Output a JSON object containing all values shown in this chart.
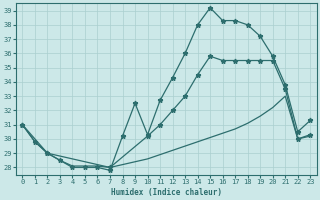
{
  "xlabel": "Humidex (Indice chaleur)",
  "xlim": [
    -0.5,
    23.5
  ],
  "ylim": [
    27.5,
    39.5
  ],
  "yticks": [
    28,
    29,
    30,
    31,
    32,
    33,
    34,
    35,
    36,
    37,
    38,
    39
  ],
  "xticks": [
    0,
    1,
    2,
    3,
    4,
    5,
    6,
    7,
    8,
    9,
    10,
    11,
    12,
    13,
    14,
    15,
    16,
    17,
    18,
    19,
    20,
    21,
    22,
    23
  ],
  "bg_color": "#cce8e8",
  "line_color": "#2d6e6e",
  "grid_color": "#aacfcf",
  "curve1_x": [
    0,
    1,
    2,
    3,
    4,
    5,
    6,
    7,
    8,
    9,
    10,
    11,
    12,
    13,
    14,
    15,
    16,
    17,
    18,
    19,
    20,
    21,
    22,
    23
  ],
  "curve1_y": [
    31,
    29.8,
    29,
    28.5,
    28.0,
    28.0,
    28.0,
    27.8,
    30.2,
    32.5,
    30.3,
    32.7,
    34.3,
    36.0,
    38.0,
    39.2,
    38.3,
    38.3,
    38.0,
    37.2,
    35.8,
    33.8,
    30.5,
    31.3
  ],
  "curve2_x": [
    0,
    2,
    7,
    10,
    11,
    12,
    13,
    14,
    15,
    16,
    17,
    18,
    19,
    20,
    21,
    22,
    23
  ],
  "curve2_y": [
    31,
    29,
    28.0,
    30.2,
    31.0,
    32.0,
    33.0,
    34.5,
    35.8,
    35.5,
    35.5,
    35.5,
    35.5,
    35.5,
    33.5,
    30.0,
    30.3
  ],
  "curve3_x": [
    0,
    1,
    2,
    3,
    4,
    5,
    6,
    7,
    8,
    9,
    10,
    11,
    12,
    13,
    14,
    15,
    16,
    17,
    18,
    19,
    20,
    21,
    22,
    23
  ],
  "curve3_y": [
    31,
    29.8,
    29.0,
    28.5,
    28.1,
    28.1,
    28.1,
    28.0,
    28.2,
    28.4,
    28.6,
    28.9,
    29.2,
    29.5,
    29.8,
    30.1,
    30.4,
    30.7,
    31.1,
    31.6,
    32.2,
    33.0,
    30.0,
    30.2
  ]
}
